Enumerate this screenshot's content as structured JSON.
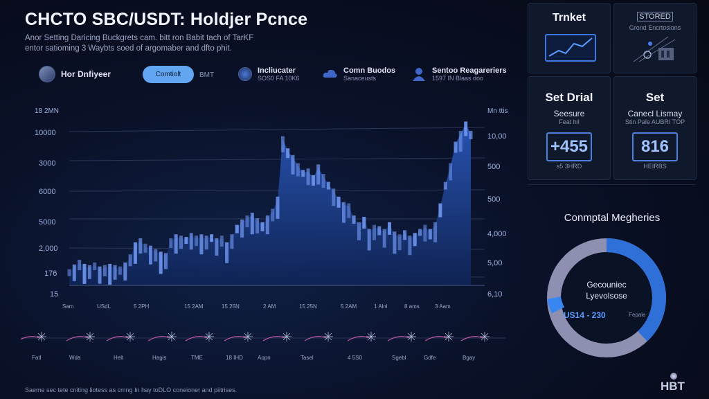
{
  "header": {
    "title": "CHCTO SBC/USDT: Holdjer Pcnce",
    "subtitle_lines": [
      "Anor Setting Daricing Buckgrets cam. bitt ron Babit tach of TarKF",
      "entor satioming 3 Waybts soed of argomaber and dfto phit."
    ]
  },
  "filters": {
    "user_label": "Hor Dnfiyeer",
    "toggle_button": "Comtiolt",
    "toggle_sub": "BMT",
    "items": [
      {
        "title": "Incliucater",
        "sub": "SOS0 FA 10K6"
      },
      {
        "title": "Comn Buodos",
        "sub": "Sanaceusts"
      },
      {
        "title": "Sentoo Reagareriers",
        "sub": "1597 IN Blaas doo"
      }
    ]
  },
  "chart": {
    "left_ticks": [
      "18 2MN",
      "10000",
      "3000",
      "6000",
      "5000",
      "2,000",
      "176",
      "15"
    ],
    "right_ticks": [
      "Mn ttis",
      "10,00",
      "500",
      "500",
      "4,000",
      "5,00",
      "6,10"
    ],
    "x_labels": [
      "Sam",
      "USdL",
      "5 2PH",
      "15 2AM",
      "15 25N",
      "2 AM",
      "15 25N",
      "5 2AM",
      "1 Alnl",
      "8 ams",
      "3 Aam"
    ],
    "area_color": "#1a3a82",
    "highlight_color": "#6f95ee"
  },
  "chart_data": {
    "type": "area",
    "series": [
      {
        "values": [
          20,
          27,
          34,
          28,
          26,
          30,
          24,
          26,
          28,
          26,
          24,
          30,
          42,
          60,
          66,
          58,
          55,
          50,
          46,
          44,
          66,
          72,
          70,
          68,
          74,
          70,
          72,
          70,
          72,
          66,
          70,
          60,
          72,
          86,
          94,
          100,
          104,
          96,
          90,
          100,
          110,
          128,
          218,
          200,
          190,
          178,
          168,
          170,
          160,
          176,
          162,
          150,
          140,
          128,
          120,
          118,
          100,
          90,
          98,
          80,
          86,
          84,
          80,
          90,
          76,
          72,
          78,
          70,
          74,
          80,
          86,
          80,
          90,
          118,
          150,
          178,
          210,
          226,
          240,
          226
        ]
      }
    ]
  },
  "timeline": {
    "labels": [
      "Fatl",
      "Wda",
      "Helt",
      "Hagis",
      "TME",
      "18 IHD",
      "Aopn",
      "Tasel",
      "4 5S0",
      "Sgebl",
      "Gdfe",
      "Bgay"
    ]
  },
  "panels": {
    "ticket": {
      "title": "Trnket"
    },
    "stored": {
      "title": "STORED",
      "sub": "Grond Encrtosions"
    },
    "left_stat": {
      "title": "Set Drial",
      "sub": "Seesure",
      "subsub": "Feat hil",
      "value": "+455",
      "value_label": "s5 3HRD"
    },
    "right_stat": {
      "title": "Set",
      "sub": "Canecl Lismay",
      "subsub": "Stin Pale AUBRI TOP",
      "value": "816",
      "value_label": "HEIRBS"
    }
  },
  "donut": {
    "title": "Conmptal Megheries",
    "center_line1": "Gecouniec",
    "center_line2": "Lyevolsose",
    "center_value": "US14 - 230",
    "center_value_suffix": "Fepale",
    "fraction_blue": 0.38,
    "blue": "#2f6fd8",
    "grey": "#8e90b2"
  },
  "footer": {
    "note": "Saeme sec tete cniting liotess as cmng In hay toDLO coneioner and piitrises.",
    "brand": "HBT"
  }
}
